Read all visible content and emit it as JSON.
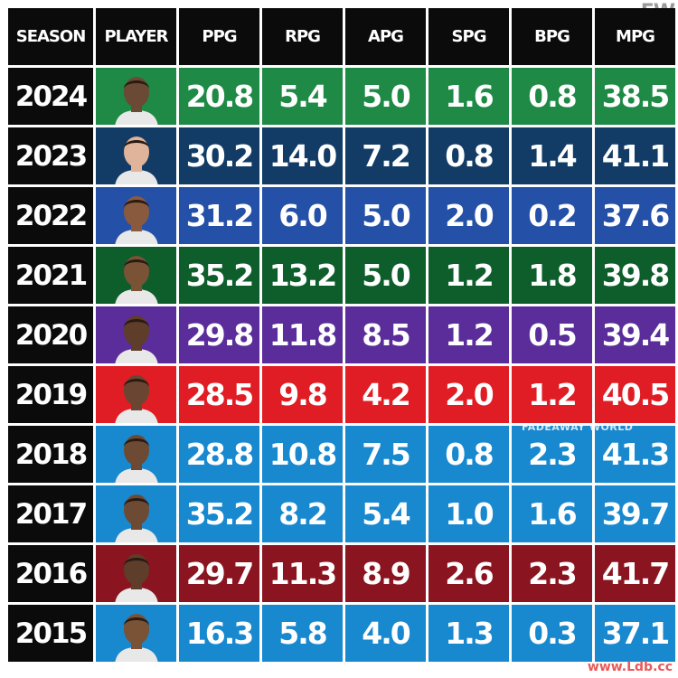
{
  "logo": "FW",
  "watermark": "FADEAWAY WORLD",
  "watermark_corner": "www.Ldb.cc",
  "headers": [
    "SEASON",
    "PLAYER",
    "PPG",
    "RPG",
    "APG",
    "SPG",
    "BPG",
    "MPG"
  ],
  "rows": [
    {
      "season": "2024",
      "color": "#1f8a45",
      "ppg": "20.8",
      "rpg": "5.4",
      "apg": "5.0",
      "spg": "1.6",
      "bpg": "0.8",
      "mpg": "38.5",
      "player_icon": "player-portrait-icon"
    },
    {
      "season": "2023",
      "color": "#123c66",
      "ppg": "30.2",
      "rpg": "14.0",
      "apg": "7.2",
      "spg": "0.8",
      "bpg": "1.4",
      "mpg": "41.1",
      "player_icon": "player-portrait-icon"
    },
    {
      "season": "2022",
      "color": "#2450a8",
      "ppg": "31.2",
      "rpg": "6.0",
      "apg": "5.0",
      "spg": "2.0",
      "bpg": "0.2",
      "mpg": "37.6",
      "player_icon": "player-portrait-icon"
    },
    {
      "season": "2021",
      "color": "#0e5e2c",
      "ppg": "35.2",
      "rpg": "13.2",
      "apg": "5.0",
      "spg": "1.2",
      "bpg": "1.8",
      "mpg": "39.8",
      "player_icon": "player-portrait-icon"
    },
    {
      "season": "2020",
      "color": "#5a2d9a",
      "ppg": "29.8",
      "rpg": "11.8",
      "apg": "8.5",
      "spg": "1.2",
      "bpg": "0.5",
      "mpg": "39.4",
      "player_icon": "player-portrait-icon"
    },
    {
      "season": "2019",
      "color": "#e01d24",
      "ppg": "28.5",
      "rpg": "9.8",
      "apg": "4.2",
      "spg": "2.0",
      "bpg": "1.2",
      "mpg": "40.5",
      "player_icon": "player-portrait-icon"
    },
    {
      "season": "2018",
      "color": "#1888cf",
      "ppg": "28.8",
      "rpg": "10.8",
      "apg": "7.5",
      "spg": "0.8",
      "bpg": "2.3",
      "mpg": "41.3",
      "player_icon": "player-portrait-icon"
    },
    {
      "season": "2017",
      "color": "#1888cf",
      "ppg": "35.2",
      "rpg": "8.2",
      "apg": "5.4",
      "spg": "1.0",
      "bpg": "1.6",
      "mpg": "39.7",
      "player_icon": "player-portrait-icon"
    },
    {
      "season": "2016",
      "color": "#8a1520",
      "ppg": "29.7",
      "rpg": "11.3",
      "apg": "8.9",
      "spg": "2.6",
      "bpg": "2.3",
      "mpg": "41.7",
      "player_icon": "player-portrait-icon"
    },
    {
      "season": "2015",
      "color": "#1888cf",
      "ppg": "16.3",
      "rpg": "5.8",
      "apg": "4.0",
      "spg": "1.3",
      "bpg": "0.3",
      "mpg": "37.1",
      "player_icon": "player-portrait-icon"
    }
  ]
}
